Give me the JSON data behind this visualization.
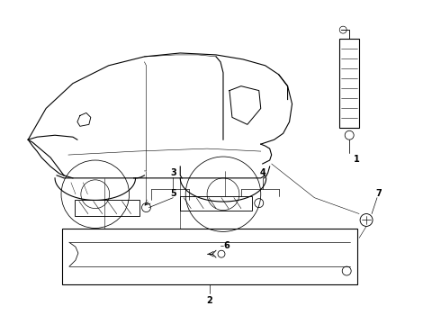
{
  "bg_color": "#ffffff",
  "line_color": "#000000",
  "fig_width": 4.9,
  "fig_height": 3.6,
  "dpi": 100,
  "label_fontsize": 7
}
